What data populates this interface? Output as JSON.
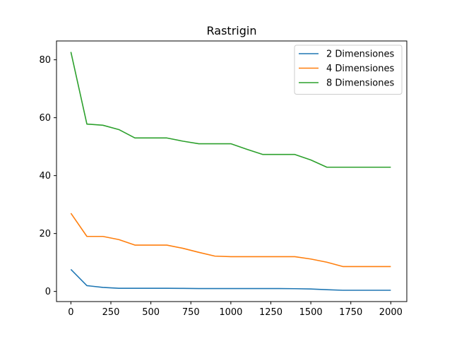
{
  "chart_data": {
    "type": "line",
    "title": "Rastrigin",
    "xlabel": "",
    "ylabel": "",
    "xlim": [
      -90,
      2100
    ],
    "ylim": [
      -3.5,
      86.5
    ],
    "xticks": [
      0,
      250,
      500,
      750,
      1000,
      1250,
      1500,
      1750,
      2000
    ],
    "yticks": [
      0,
      20,
      40,
      60,
      80
    ],
    "grid": false,
    "legend_position": "top-right",
    "series": [
      {
        "name": "2 Dimensiones",
        "color": "#1f77b4",
        "x": [
          0,
          100,
          200,
          300,
          400,
          500,
          600,
          700,
          800,
          900,
          1000,
          1100,
          1200,
          1300,
          1400,
          1500,
          1600,
          1700,
          1800,
          1900,
          2000
        ],
        "y": [
          7.6,
          2.0,
          1.4,
          1.1,
          1.1,
          1.1,
          1.1,
          1.05,
          1.0,
          1.0,
          1.0,
          1.0,
          1.0,
          1.0,
          0.95,
          0.85,
          0.6,
          0.4,
          0.4,
          0.4,
          0.4
        ]
      },
      {
        "name": "4 Dimensiones",
        "color": "#ff7f0e",
        "x": [
          0,
          100,
          200,
          300,
          400,
          500,
          600,
          700,
          800,
          900,
          1000,
          1100,
          1200,
          1300,
          1400,
          1500,
          1600,
          1700,
          1800,
          1900,
          2000
        ],
        "y": [
          27.0,
          19.0,
          19.0,
          17.9,
          16.0,
          16.0,
          16.0,
          14.9,
          13.5,
          12.2,
          12.0,
          12.0,
          12.0,
          12.0,
          12.0,
          11.2,
          10.1,
          8.6,
          8.6,
          8.6,
          8.6
        ]
      },
      {
        "name": "8 Dimensiones",
        "color": "#2ca02c",
        "x": [
          0,
          100,
          200,
          300,
          400,
          500,
          600,
          700,
          800,
          900,
          1000,
          1100,
          1200,
          1300,
          1400,
          1500,
          1600,
          1700,
          1800,
          1900,
          2000
        ],
        "y": [
          82.7,
          57.8,
          57.4,
          55.9,
          53.0,
          53.0,
          53.0,
          51.9,
          51.0,
          51.0,
          51.0,
          49.1,
          47.3,
          47.3,
          47.3,
          45.4,
          42.9,
          42.9,
          42.9,
          42.9,
          42.9
        ]
      }
    ]
  }
}
